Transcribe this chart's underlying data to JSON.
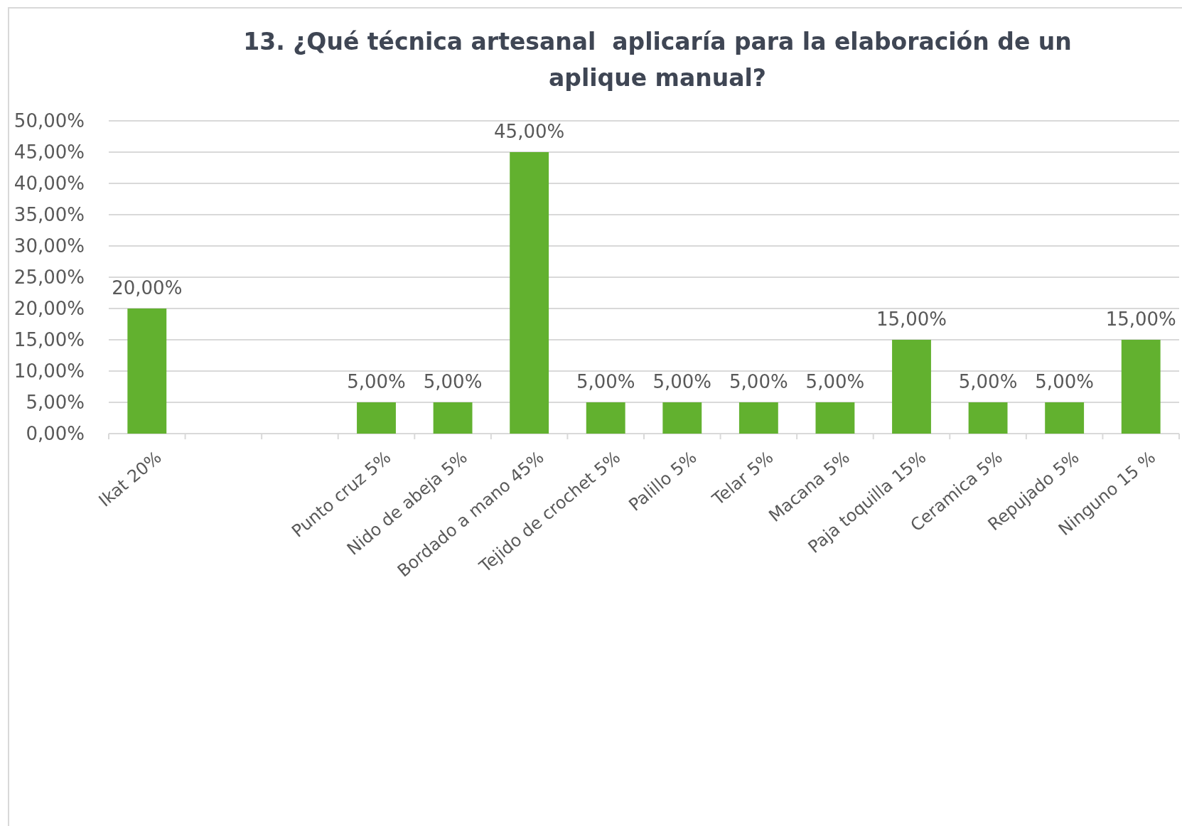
{
  "chart_data": {
    "type": "bar",
    "title": "13. ¿Qué técnica artesanal  aplicaría para la elaboración de un aplique manual?",
    "categories": [
      "Ikat  20%",
      null,
      null,
      "Punto cruz  5%",
      "Nido de abeja 5%",
      "Bordado a mano 45%",
      "Tejido de crochet  5%",
      "Palillo 5%",
      "Telar 5%",
      "Macana  5%",
      "Paja toquilla 15%",
      "Ceramica 5%",
      "Repujado  5%",
      "Ninguno 15 %"
    ],
    "values": [
      20,
      null,
      null,
      5,
      5,
      45,
      5,
      5,
      5,
      5,
      15,
      5,
      5,
      15
    ],
    "value_labels": [
      "20,00%",
      null,
      null,
      "5,00%",
      "5,00%",
      "45,00%",
      "5,00%",
      "5,00%",
      "5,00%",
      "5,00%",
      "15,00%",
      "5,00%",
      "5,00%",
      "15,00%"
    ],
    "color": "#62b12f",
    "ylim": [
      0,
      50
    ],
    "yticks": [
      {
        "value": 0,
        "label": "0,00%"
      },
      {
        "value": 5,
        "label": "5,00%"
      },
      {
        "value": 10,
        "label": "10,00%"
      },
      {
        "value": 15,
        "label": "15,00%"
      },
      {
        "value": 20,
        "label": "20,00%"
      },
      {
        "value": 25,
        "label": "25,00%"
      },
      {
        "value": 30,
        "label": "30,00%"
      },
      {
        "value": 35,
        "label": "35,00%"
      },
      {
        "value": 40,
        "label": "40,00%"
      },
      {
        "value": 45,
        "label": "45,00%"
      },
      {
        "value": 50,
        "label": "50,00%"
      }
    ],
    "grid": "y"
  }
}
